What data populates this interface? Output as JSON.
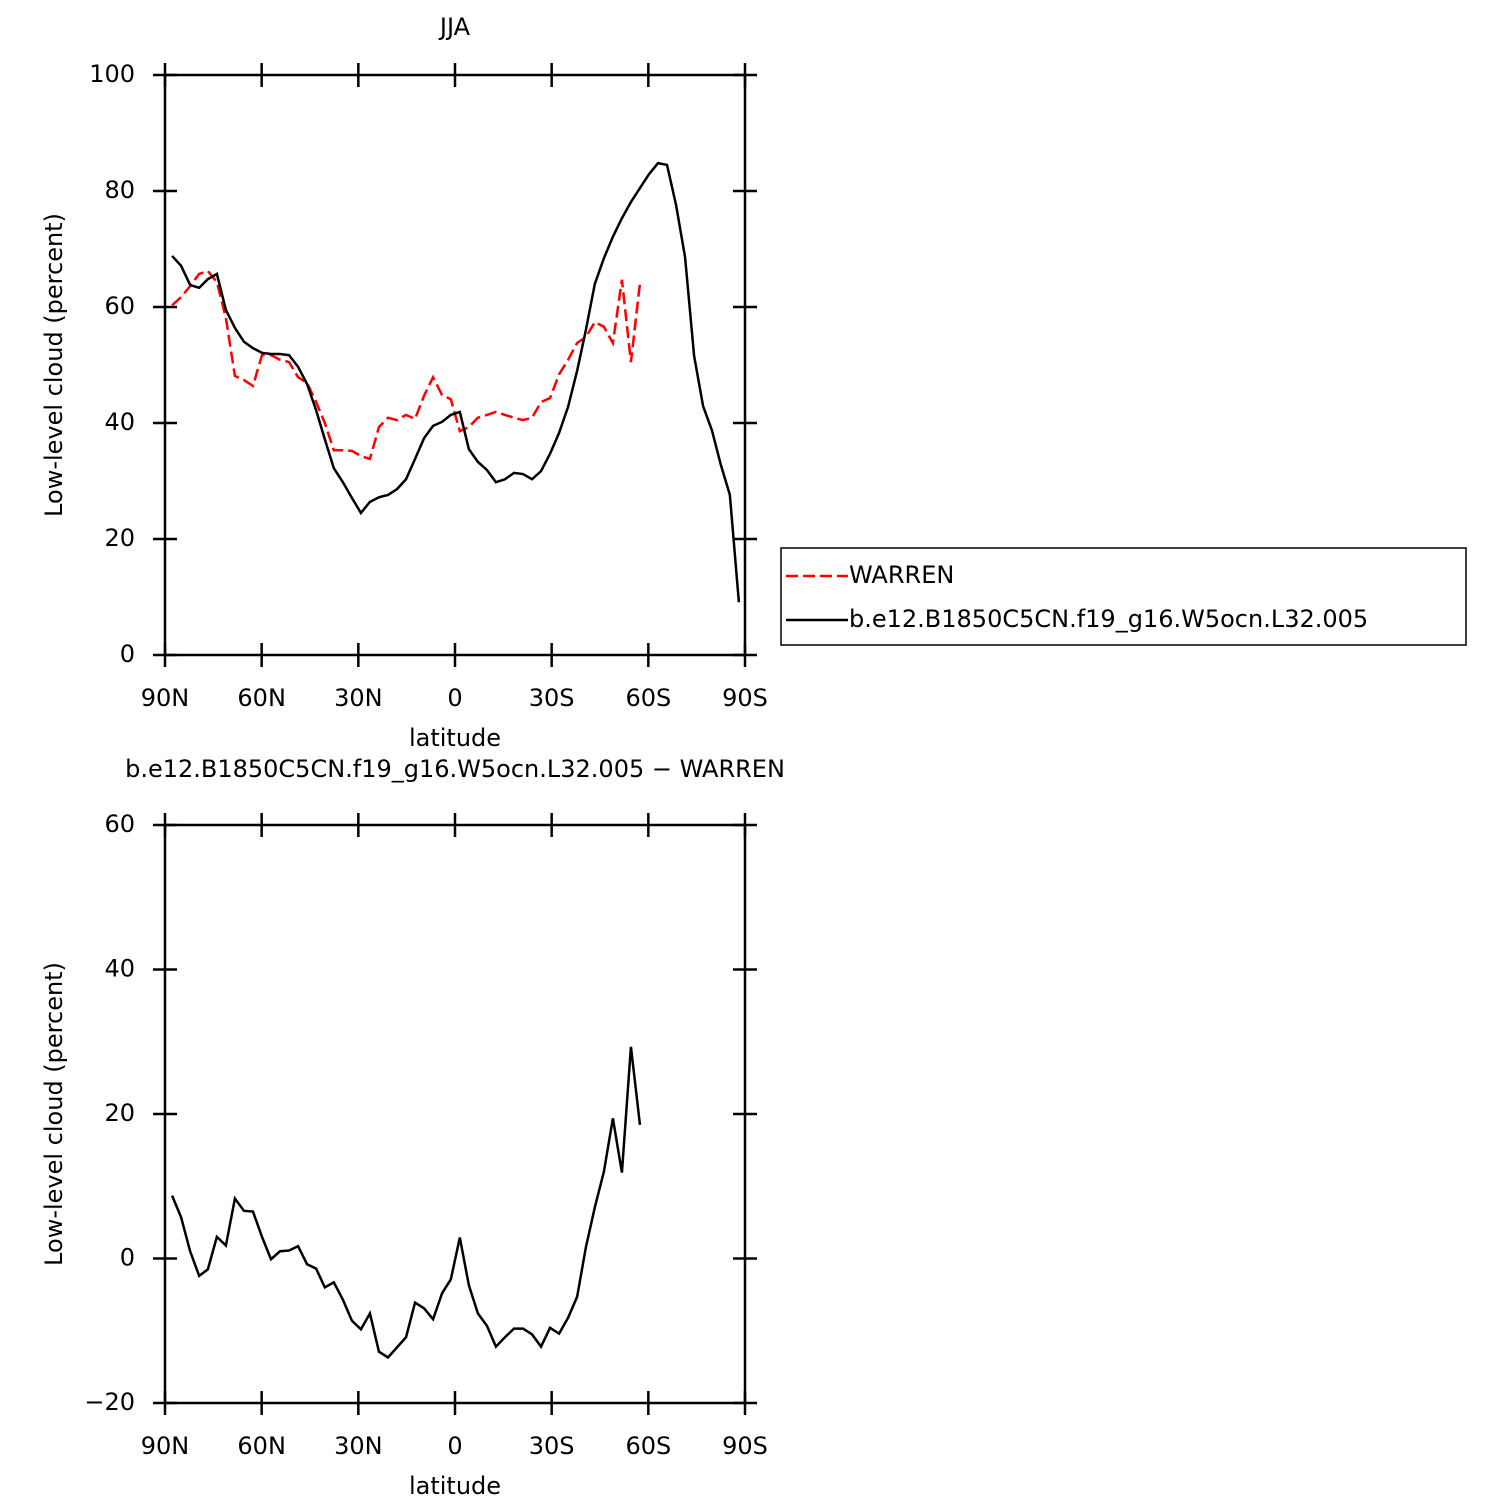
{
  "chart_data": [
    {
      "type": "line",
      "title": "JJA",
      "xlabel": "latitude",
      "ylabel": "Low-level cloud (percent)",
      "xlim": [
        90,
        -90
      ],
      "xticks": [
        {
          "value": 90,
          "label": "90N"
        },
        {
          "value": 60,
          "label": "60N"
        },
        {
          "value": 30,
          "label": "30N"
        },
        0,
        {
          "value": -30,
          "label": "30S"
        },
        {
          "value": -60,
          "label": "60S"
        },
        {
          "value": -90,
          "label": "90S"
        }
      ],
      "ylim": [
        0,
        100
      ],
      "yticks": [
        0,
        20,
        40,
        60,
        80,
        100
      ],
      "legend": "right",
      "series": [
        {
          "name": "WARREN",
          "color": "#ff0000",
          "linestyle": "dashed",
          "x": [
            87.8,
            85.0,
            82.2,
            79.4,
            76.7,
            73.9,
            71.1,
            68.3,
            65.5,
            62.7,
            59.9,
            57.1,
            54.3,
            51.5,
            48.7,
            45.9,
            43.1,
            40.4,
            37.6,
            34.8,
            32.0,
            29.2,
            26.4,
            23.6,
            20.8,
            18.0,
            15.2,
            12.4,
            9.6,
            6.8,
            4.0,
            1.3,
            -1.5,
            -4.3,
            -7.1,
            -9.9,
            -12.7,
            -15.5,
            -18.3,
            -21.1,
            -23.9,
            -26.7,
            -29.5,
            -32.3,
            -35.1,
            -37.9,
            -40.6,
            -43.4,
            -46.2,
            -49.0,
            -51.8,
            -54.6,
            -57.4
          ],
          "values": [
            60.3,
            61.7,
            63.6,
            65.7,
            66.2,
            64.3,
            58.1,
            48.1,
            47.4,
            46.4,
            51.7,
            51.7,
            50.9,
            50.5,
            47.9,
            46.9,
            43.6,
            40.0,
            35.3,
            35.3,
            35.2,
            34.3,
            33.8,
            39.3,
            40.9,
            40.5,
            41.4,
            40.7,
            44.7,
            47.9,
            44.8,
            44.1,
            38.6,
            39.3,
            40.9,
            41.4,
            41.9,
            41.4,
            40.9,
            40.5,
            40.9,
            43.6,
            44.3,
            48.4,
            50.9,
            53.8,
            54.8,
            57.4,
            56.6,
            53.8,
            64.7,
            50.5,
            64.1
          ]
        },
        {
          "name": "b.e12.B1850C5CN.f19_g16.W5ocn.L32.005",
          "color": "#000000",
          "linestyle": "solid",
          "x": [
            87.8,
            85.0,
            82.2,
            79.4,
            76.7,
            73.9,
            71.1,
            68.3,
            65.5,
            62.7,
            59.9,
            57.1,
            54.3,
            51.5,
            48.7,
            45.9,
            43.1,
            40.4,
            37.6,
            34.8,
            32.0,
            29.2,
            26.4,
            23.6,
            20.8,
            18.0,
            15.2,
            12.4,
            9.6,
            6.8,
            4.0,
            1.3,
            -1.5,
            -4.3,
            -7.1,
            -9.9,
            -12.7,
            -15.5,
            -18.3,
            -21.1,
            -23.9,
            -26.7,
            -29.5,
            -32.3,
            -35.1,
            -37.9,
            -40.6,
            -43.4,
            -46.2,
            -49.0,
            -51.8,
            -54.6,
            -57.4,
            -60.2,
            -63.0,
            -65.8,
            -68.6,
            -71.4,
            -74.2,
            -77.0,
            -79.7,
            -82.5,
            -85.3,
            -88.1
          ],
          "values": [
            68.8,
            67.1,
            63.8,
            63.3,
            64.8,
            65.7,
            59.5,
            56.4,
            54.0,
            52.9,
            52.1,
            51.9,
            51.9,
            51.7,
            49.7,
            46.7,
            42.2,
            37.2,
            32.2,
            29.8,
            27.1,
            24.5,
            26.4,
            27.2,
            27.6,
            28.6,
            30.3,
            33.8,
            37.4,
            39.5,
            40.2,
            41.4,
            41.9,
            35.5,
            33.3,
            31.9,
            29.8,
            30.3,
            31.4,
            31.2,
            30.3,
            31.7,
            34.7,
            38.3,
            42.8,
            49.0,
            56.0,
            64.0,
            68.4,
            72.1,
            75.3,
            78.1,
            80.5,
            82.9,
            84.8,
            84.5,
            77.6,
            68.6,
            51.6,
            42.9,
            38.8,
            32.8,
            27.6,
            9.1
          ]
        }
      ]
    },
    {
      "type": "line",
      "title": "b.e12.B1850C5CN.f19_g16.W5ocn.L32.005 − WARREN",
      "xlabel": "latitude",
      "ylabel": "Low-level cloud (percent)",
      "xlim": [
        90,
        -90
      ],
      "xticks": [
        {
          "value": 90,
          "label": "90N"
        },
        {
          "value": 60,
          "label": "60N"
        },
        {
          "value": 30,
          "label": "30N"
        },
        0,
        {
          "value": -30,
          "label": "30S"
        },
        {
          "value": -60,
          "label": "60S"
        },
        {
          "value": -90,
          "label": "90S"
        }
      ],
      "ylim": [
        -20,
        60
      ],
      "yticks": [
        {
          "value": -20,
          "label": "−20"
        },
        0,
        20,
        40,
        60
      ],
      "series": [
        {
          "color": "#000000",
          "linestyle": "solid",
          "x": [
            87.8,
            85.0,
            82.2,
            79.4,
            76.7,
            73.9,
            71.1,
            68.3,
            65.5,
            62.7,
            59.9,
            57.1,
            54.3,
            51.5,
            48.7,
            45.9,
            43.1,
            40.4,
            37.6,
            34.8,
            32.0,
            29.2,
            26.4,
            23.6,
            20.8,
            18.0,
            15.2,
            12.4,
            9.6,
            6.8,
            4.0,
            1.3,
            -1.5,
            -4.3,
            -7.1,
            -9.9,
            -12.7,
            -15.5,
            -18.3,
            -21.1,
            -23.9,
            -26.7,
            -29.5,
            -32.3,
            -35.1,
            -37.9,
            -40.6,
            -43.4,
            -46.2,
            -49.0,
            -51.8,
            -54.6,
            -57.4
          ],
          "values": [
            8.7,
            5.7,
            1.0,
            -2.4,
            -1.5,
            3.0,
            1.8,
            8.3,
            6.6,
            6.5,
            3.0,
            -0.1,
            1.0,
            1.1,
            1.7,
            -0.8,
            -1.4,
            -4.0,
            -3.3,
            -5.7,
            -8.6,
            -9.8,
            -7.6,
            -12.9,
            -13.7,
            -12.3,
            -10.9,
            -6.1,
            -6.9,
            -8.4,
            -4.8,
            -2.9,
            2.9,
            -3.7,
            -7.6,
            -9.3,
            -12.2,
            -10.9,
            -9.7,
            -9.7,
            -10.5,
            -12.2,
            -9.6,
            -10.4,
            -8.2,
            -5.3,
            1.5,
            7.1,
            12.0,
            19.4,
            11.9,
            29.3,
            18.5
          ]
        }
      ]
    }
  ]
}
